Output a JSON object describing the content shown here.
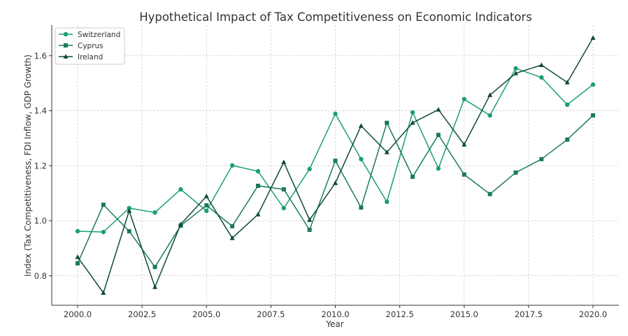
{
  "chart_data": {
    "type": "line",
    "title": "Hypothetical Impact of Tax Competitiveness on Economic Indicators",
    "xlabel": "Year",
    "ylabel": "Index (Tax Competitiveness, FDI Inflow, GDP Growth)",
    "xlim": [
      1999,
      2021
    ],
    "ylim": [
      0.69,
      1.72
    ],
    "xticks": [
      2000,
      2002.5,
      2005,
      2007.5,
      2010,
      2012.5,
      2015,
      2017.5,
      2020
    ],
    "xtick_labels": [
      "2000.0",
      "2002.5",
      "2005.0",
      "2007.5",
      "2010.0",
      "2012.5",
      "2015.0",
      "2017.5",
      "2020.0"
    ],
    "yticks": [
      0.8,
      1.0,
      1.2,
      1.4,
      1.6
    ],
    "ytick_labels": [
      "0.8",
      "1.0",
      "1.2",
      "1.4",
      "1.6"
    ],
    "grid": true,
    "legend_position": "top-left",
    "x": [
      2000,
      2001,
      2002,
      2003,
      2004,
      2005,
      2006,
      2007,
      2008,
      2009,
      2010,
      2011,
      2012,
      2013,
      2014,
      2015,
      2016,
      2017,
      2018,
      2019,
      2020
    ],
    "series": [
      {
        "name": "Switzerland",
        "marker": "circle",
        "color": "#1b9e77",
        "values": [
          0.962,
          0.959,
          1.046,
          1.03,
          1.114,
          1.036,
          1.201,
          1.18,
          1.046,
          1.188,
          1.389,
          1.224,
          1.069,
          1.394,
          1.19,
          1.442,
          1.383,
          1.554,
          1.521,
          1.422,
          1.495
        ]
      },
      {
        "name": "Cyprus",
        "marker": "square",
        "color": "#1a7a5c",
        "values": [
          0.845,
          1.058,
          0.962,
          0.832,
          0.982,
          1.056,
          0.98,
          1.127,
          1.114,
          0.967,
          1.218,
          1.048,
          1.356,
          1.16,
          1.312,
          1.168,
          1.097,
          1.175,
          1.224,
          1.295,
          1.383
        ]
      },
      {
        "name": "Ireland",
        "marker": "triangle",
        "color": "#0f4a38",
        "values": [
          0.868,
          0.738,
          1.036,
          0.759,
          0.987,
          1.089,
          0.937,
          1.023,
          1.213,
          1.003,
          1.137,
          1.345,
          1.249,
          1.356,
          1.404,
          1.277,
          1.457,
          1.536,
          1.566,
          1.503,
          1.665
        ]
      }
    ]
  }
}
